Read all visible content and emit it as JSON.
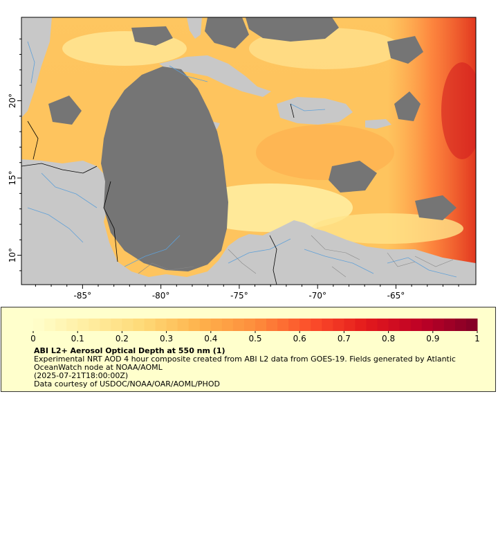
{
  "map": {
    "x_ticks": [
      "-85°",
      "-80°",
      "-75°",
      "-70°",
      "-65°"
    ],
    "y_ticks": [
      "10°",
      "15°",
      "20°"
    ],
    "x_tick_values": [
      -85,
      -80,
      -75,
      -70,
      -65
    ],
    "y_tick_values": [
      10,
      15,
      20
    ],
    "lon_range": [
      -88.9,
      -59.9
    ],
    "lat_range": [
      8.1,
      25.4
    ],
    "land_color": "#c8c8c8",
    "no_data_color": "#757575",
    "river_color": "#5fa0d8",
    "border_color": "#000000"
  },
  "legend": {
    "tick_labels": [
      "0",
      "0.1",
      "0.2",
      "0.3",
      "0.4",
      "0.5",
      "0.6",
      "0.7",
      "0.8",
      "0.9",
      "1"
    ],
    "tick_values": [
      0,
      0.1,
      0.2,
      0.3,
      0.4,
      0.5,
      0.6,
      0.7,
      0.8,
      0.9,
      1
    ],
    "range": [
      0,
      1
    ],
    "colors": [
      "#ffffcc",
      "#ffeda0",
      "#fed976",
      "#feb24c",
      "#fd8d3c",
      "#fc4e2a",
      "#e31a1c",
      "#bd0026",
      "#800026"
    ],
    "title": "ABI L2+ Aerosol Optical Depth at 550 nm (1)",
    "line1": "Experimental NRT AOD 4 hour composite created from ABI L2 data from GOES-19. Fields generated by Atlantic",
    "line2": "OceanWatch node at NOAA/AOML",
    "line3": "(2025-07-21T18:00:00Z)",
    "line4": "Data courtesy of USDOC/NOAA/OAR/AOML/PHOD"
  }
}
